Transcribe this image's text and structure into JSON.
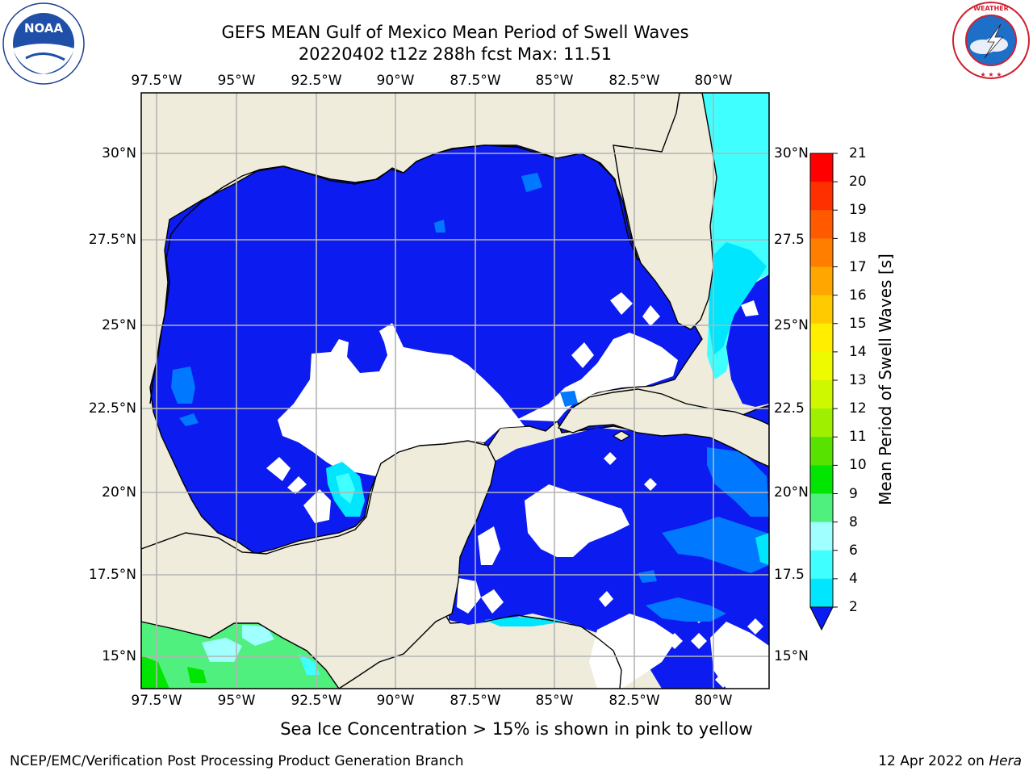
{
  "header": {
    "title_line1": "GEFS MEAN Gulf of Mexico Mean Period of Swell Waves",
    "title_line2": "20220402 t12z 288h fcst   Max: 11.51"
  },
  "map": {
    "lon_labels": [
      "97.5°W",
      "95°W",
      "92.5°W",
      "90°W",
      "87.5°W",
      "85°W",
      "82.5°W",
      "80°W"
    ],
    "lat_labels": [
      "30°N",
      "27.5°N",
      "25°N",
      "22.5°N",
      "20°N",
      "17.5°N",
      "15°N"
    ],
    "lat_labels_right": [
      "30°N",
      "27.5",
      "25°N",
      "22.5",
      "20°N",
      "17.5",
      "15°N"
    ],
    "lon_range": [
      -98,
      -78.2
    ],
    "lat_range": [
      14.0,
      31.7
    ],
    "colors": {
      "land": "#efecdc",
      "sea_low": "#0c1bf0",
      "no_data": "#ffffff",
      "grid": "#b4b4b4"
    }
  },
  "colorbar": {
    "title": "Mean Period of Swell Waves [s]",
    "ticks": [
      "21",
      "20",
      "19",
      "18",
      "17",
      "16",
      "15",
      "14",
      "13",
      "12",
      "11",
      "10",
      "9",
      "8",
      "6",
      "4",
      "2"
    ],
    "colors": [
      "#ff0000",
      "#ff3000",
      "#ff5a00",
      "#ff7e00",
      "#ffa600",
      "#ffca00",
      "#ffee00",
      "#eefa00",
      "#cef800",
      "#9ef000",
      "#58e200",
      "#00e600",
      "#50f07e",
      "#a0ffff",
      "#40ffff",
      "#00e6ff",
      "#0078ff"
    ],
    "extend_color": "#0c1bf0"
  },
  "note": "Sea Ice Concentration > 15% is shown in pink to yellow",
  "footer": {
    "left": "NCEP/EMC/Verification Post Processing Product Generation Branch",
    "right_date": "12 Apr 2022 on ",
    "right_host": "Hera"
  },
  "logos": {
    "left": {
      "name": "NOAA",
      "ring_text": "NATIONAL OCEANIC AND ATMOSPHERIC ADMINISTRATION · U.S. DEPARTMENT OF COMMERCE"
    },
    "right": {
      "name": "NATIONAL WEATHER SERVICE"
    }
  }
}
